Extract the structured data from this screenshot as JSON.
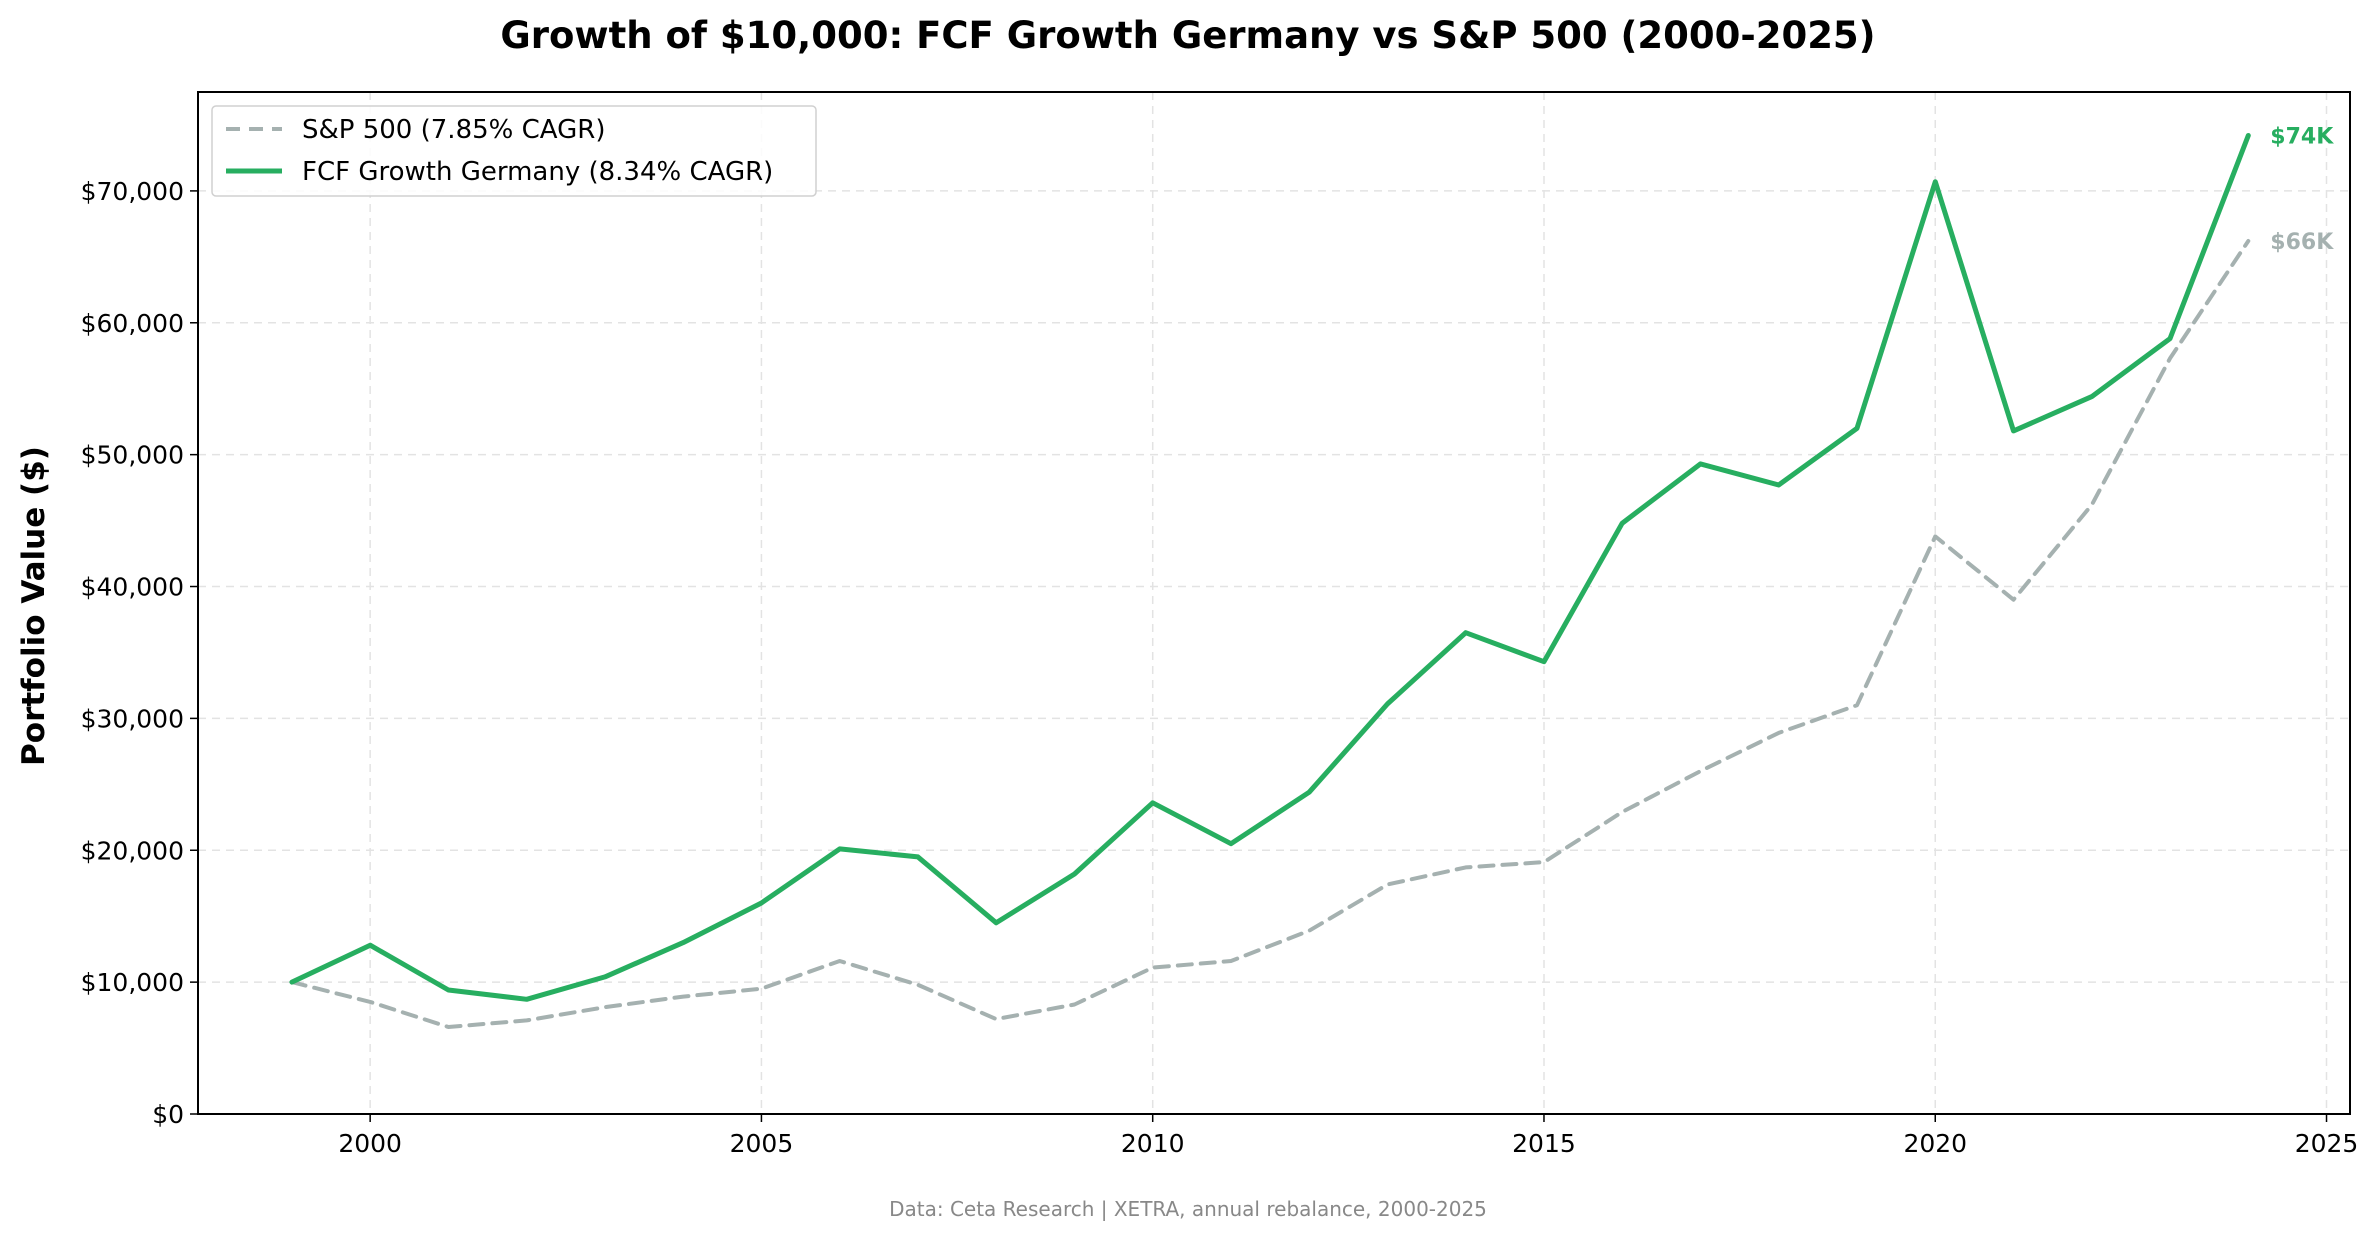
{
  "chart_data": {
    "type": "line",
    "title": "Growth of $10,000: FCF Growth Germany vs S&P 500 (2000-2025)",
    "xlabel": "",
    "ylabel": "Portfolio Value ($)",
    "xlim": [
      1997.8,
      2025.3
    ],
    "ylim": [
      0,
      77500
    ],
    "xticks": [
      2000,
      2005,
      2010,
      2015,
      2020,
      2025
    ],
    "yticks": [
      0,
      10000,
      20000,
      30000,
      40000,
      50000,
      60000,
      70000
    ],
    "ytick_labels": [
      "$0",
      "$10,000",
      "$20,000",
      "$30,000",
      "$40,000",
      "$50,000",
      "$60,000",
      "$70,000"
    ],
    "grid": true,
    "legend_position": "top-left",
    "x": [
      1999,
      2000,
      2001,
      2002,
      2003,
      2004,
      2005,
      2006,
      2007,
      2008,
      2009,
      2010,
      2011,
      2012,
      2013,
      2014,
      2015,
      2016,
      2017,
      2018,
      2019,
      2020,
      2021,
      2022,
      2023,
      2024
    ],
    "series": [
      {
        "name": "S&P 500 (7.85% CAGR)",
        "color": "#a5b1b0",
        "style": "dashed",
        "values": [
          10000,
          8500,
          6600,
          7100,
          8100,
          8900,
          9500,
          11600,
          9800,
          7200,
          8300,
          11100,
          11600,
          13900,
          17400,
          18700,
          19100,
          22900,
          26000,
          28900,
          31000,
          43800,
          39000,
          46200,
          57300,
          66200
        ],
        "end_label": "$66K"
      },
      {
        "name": "FCF Growth Germany (8.34% CAGR)",
        "color": "#27ae60",
        "style": "solid",
        "values": [
          10000,
          12800,
          9400,
          8700,
          10400,
          13000,
          16000,
          20100,
          19500,
          14500,
          18200,
          23600,
          20500,
          24400,
          31100,
          36500,
          34300,
          44800,
          49300,
          47700,
          52000,
          70700,
          51800,
          54400,
          58800,
          74200
        ],
        "end_label": "$74K"
      }
    ],
    "footnote": "Data: Ceta Research | XETRA, annual rebalance, 2000-2025"
  }
}
